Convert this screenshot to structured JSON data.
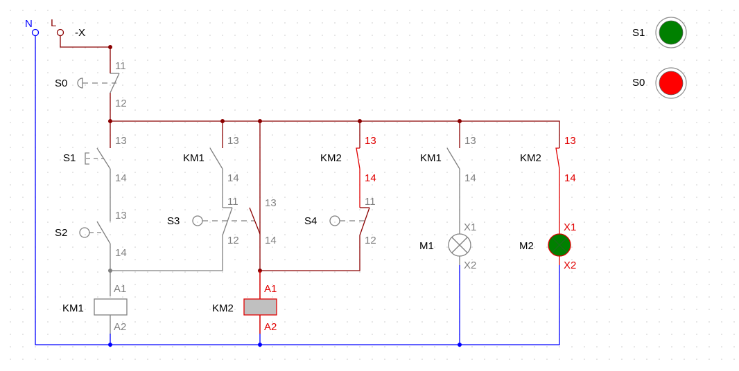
{
  "colors": {
    "neutral_wire": "#0000ff",
    "live_wire": "#8b0000",
    "inactive_wire": "#808080",
    "active_wire": "#e00000",
    "lamp_on": "#008000",
    "indicator_green": "#008000",
    "indicator_red": "#ff0000",
    "coil_energized": "#c0c0c0",
    "grid_dot": "#c8c8c8"
  },
  "terminals": {
    "neutral": "N",
    "live": "L",
    "connector": "-X"
  },
  "indicators": [
    {
      "label": "S1",
      "color": "#008000"
    },
    {
      "label": "S0",
      "color": "#ff0000"
    }
  ],
  "components": {
    "s0": {
      "label": "S0",
      "pin_top": "11",
      "pin_bottom": "12"
    },
    "s1": {
      "label": "S1",
      "pin_top": "13",
      "pin_bottom": "14"
    },
    "s2": {
      "label": "S2",
      "pin_top": "13",
      "pin_bottom": "14"
    },
    "km1_hold": {
      "label": "KM1",
      "pin_top": "13",
      "pin_bottom": "14"
    },
    "s3": {
      "label": "S3",
      "nc_top": "11",
      "nc_bottom": "12",
      "no_top": "13",
      "no_bottom": "14"
    },
    "km2_hold": {
      "label": "KM2",
      "pin_top": "13",
      "pin_bottom": "14"
    },
    "s4": {
      "label": "S4",
      "pin_top": "11",
      "pin_bottom": "12"
    },
    "km1_lamp": {
      "label": "KM1",
      "pin_top": "13",
      "pin_bottom": "14"
    },
    "km2_lamp": {
      "label": "KM2",
      "pin_top": "13",
      "pin_bottom": "14"
    },
    "m1": {
      "label": "M1",
      "pin_top": "X1",
      "pin_bottom": "X2"
    },
    "m2": {
      "label": "M2",
      "pin_top": "X1",
      "pin_bottom": "X2"
    },
    "km1_coil": {
      "label": "KM1",
      "pin_top": "A1",
      "pin_bottom": "A2"
    },
    "km2_coil": {
      "label": "KM2",
      "pin_top": "A1",
      "pin_bottom": "A2"
    }
  }
}
